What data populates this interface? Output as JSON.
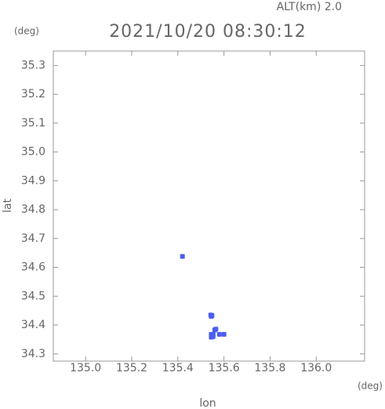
{
  "chart_data": {
    "type": "scatter",
    "title": "2021/10/20 08:30:12",
    "subtitle": "ALT(km) 2.0",
    "x_label": "lon",
    "y_label": "lat",
    "x_unit": "(deg)",
    "y_unit": "(deg)",
    "xlim": [
      134.86,
      136.21
    ],
    "ylim": [
      34.275,
      35.35
    ],
    "xticks": [
      {
        "value": 135,
        "label": "135.0"
      },
      135.2,
      135.4,
      135.6,
      135.8,
      {
        "value": 136,
        "label": "136.0"
      }
    ],
    "yticks": [
      34.3,
      34.4,
      34.5,
      34.6,
      34.7,
      34.8,
      34.9,
      {
        "value": 35,
        "label": "35.0"
      },
      35.1,
      35.2,
      35.3
    ],
    "series": [
      {
        "color": "#4a5ef0",
        "x": [
          135.42,
          135.543,
          135.548,
          135.545,
          135.565,
          135.56,
          135.545,
          135.553,
          135.545,
          135.553,
          135.549,
          135.58,
          135.6
        ],
        "values": [
          34.638,
          34.435,
          34.433,
          34.43,
          34.386,
          34.383,
          34.368,
          34.368,
          34.358,
          34.36,
          34.363,
          34.368,
          34.368
        ]
      }
    ]
  }
}
